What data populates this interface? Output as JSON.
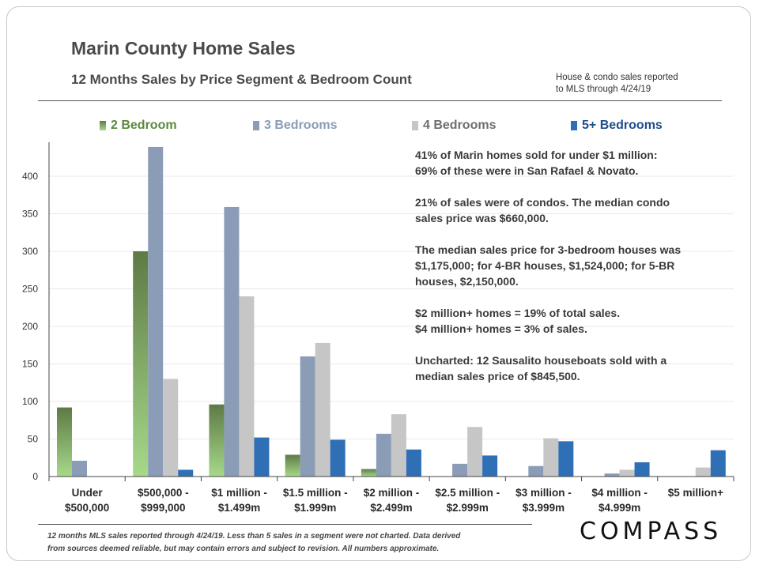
{
  "header": {
    "title": "Marin County Home Sales",
    "subtitle": "12 Months Sales by Price Segment & Bedroom Count",
    "note_line1": "House & condo sales reported",
    "note_line2": "to MLS through 4/24/19"
  },
  "colors": {
    "green_top": "#5e7a45",
    "green_bottom": "#a6d98a",
    "blue_grey": "#8a9cb6",
    "light_grey": "#c6c6c6",
    "blue": "#2e6fb5"
  },
  "chart_data": {
    "type": "bar",
    "categories": [
      [
        "Under",
        "$500,000"
      ],
      [
        "$500,000 -",
        "$999,000"
      ],
      [
        "$1 million -",
        "$1.499m"
      ],
      [
        "$1.5 million -",
        "$1.999m"
      ],
      [
        "$2 million -",
        "$2.499m"
      ],
      [
        "$2.5 million -",
        "$2.999m"
      ],
      [
        "$3 million -",
        "$3.999m"
      ],
      [
        "$4 million -",
        "$4.999m"
      ],
      [
        "$5 million+",
        ""
      ]
    ],
    "series": [
      {
        "name": "2 Bedroom",
        "color": "#5b8a3c",
        "values": [
          92,
          300,
          96,
          29,
          10,
          null,
          null,
          null,
          null
        ]
      },
      {
        "name": "3 Bedrooms",
        "color": "#8a9cb6",
        "values": [
          21,
          439,
          359,
          160,
          57,
          17,
          14,
          4,
          null
        ]
      },
      {
        "name": "4 Bedrooms",
        "color": "#c6c6c6",
        "values": [
          null,
          130,
          240,
          178,
          83,
          66,
          51,
          9,
          12
        ]
      },
      {
        "name": "5+ Bedrooms",
        "color": "#2e6fb5",
        "values": [
          null,
          9,
          52,
          49,
          36,
          28,
          47,
          19,
          35
        ]
      }
    ],
    "ylim": [
      0,
      440
    ],
    "yticks": [
      0,
      50,
      100,
      150,
      200,
      250,
      300,
      350,
      400
    ],
    "grid": true,
    "legend": "top"
  },
  "annotations": [
    [
      "41% of Marin homes sold for under $1 million:",
      "69% of these were in San Rafael & Novato."
    ],
    [
      "21% of sales were of condos. The median condo",
      "sales price was $660,000."
    ],
    [
      "The median sales price for 3-bedroom houses was",
      "$1,175,000; for 4-BR houses, $1,524,000; for 5-BR",
      "houses, $2,150,000."
    ],
    [
      "$2 million+ homes = 19% of total sales.",
      "$4 million+ homes = 3% of sales."
    ],
    [
      "Uncharted: 12 Sausalito houseboats sold with a",
      "median sales price of $845,500."
    ]
  ],
  "footer": {
    "line1": "12 months MLS sales reported through 4/24/19. Less than 5 sales in a segment were not charted. Data derived",
    "line2": "from sources deemed reliable, but may contain errors and subject to revision. All numbers approximate."
  },
  "logo": "COMPASS"
}
